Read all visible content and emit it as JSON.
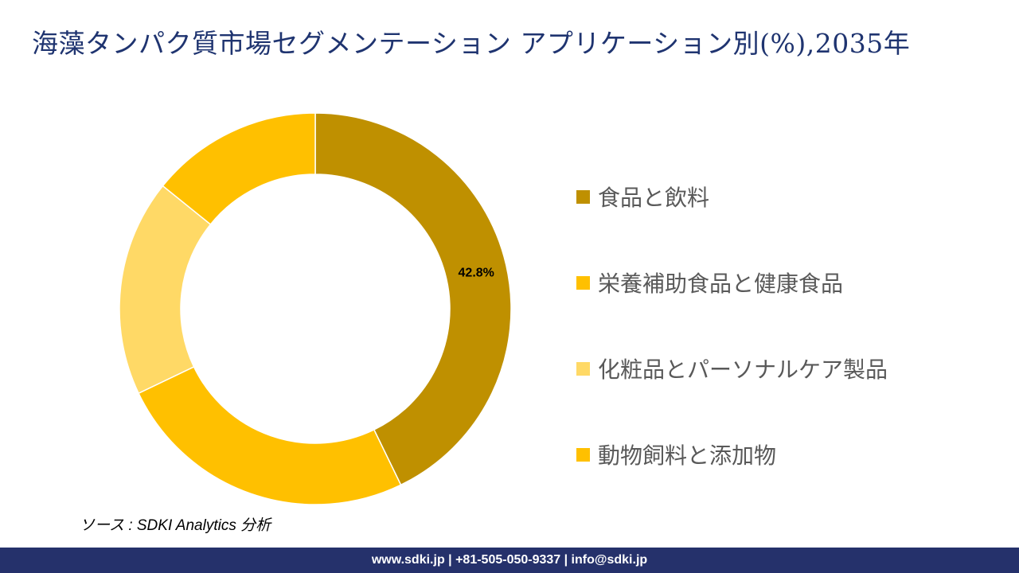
{
  "title": "海藻タンパク質市場セグメンテーション アプリケーション別(%),2035年",
  "chart_data": {
    "type": "pie",
    "variant": "donut",
    "categories": [
      "食品と飲料",
      "栄養補助食品と健康食品",
      "化粧品とパーソナルケア製品",
      "動物飼料と添加物"
    ],
    "values": [
      42.8,
      25.1,
      17.9,
      14.2
    ],
    "colors": [
      "#BF9000",
      "#FFC000",
      "#FFD966",
      "#FFC000"
    ],
    "data_labels": [
      "42.8%",
      "",
      "",
      ""
    ],
    "legend_position": "right"
  },
  "source": "ソース : SDKI Analytics 分析",
  "footer": "www.sdki.jp | +81-505-050-9337 | info@sdki.jp"
}
